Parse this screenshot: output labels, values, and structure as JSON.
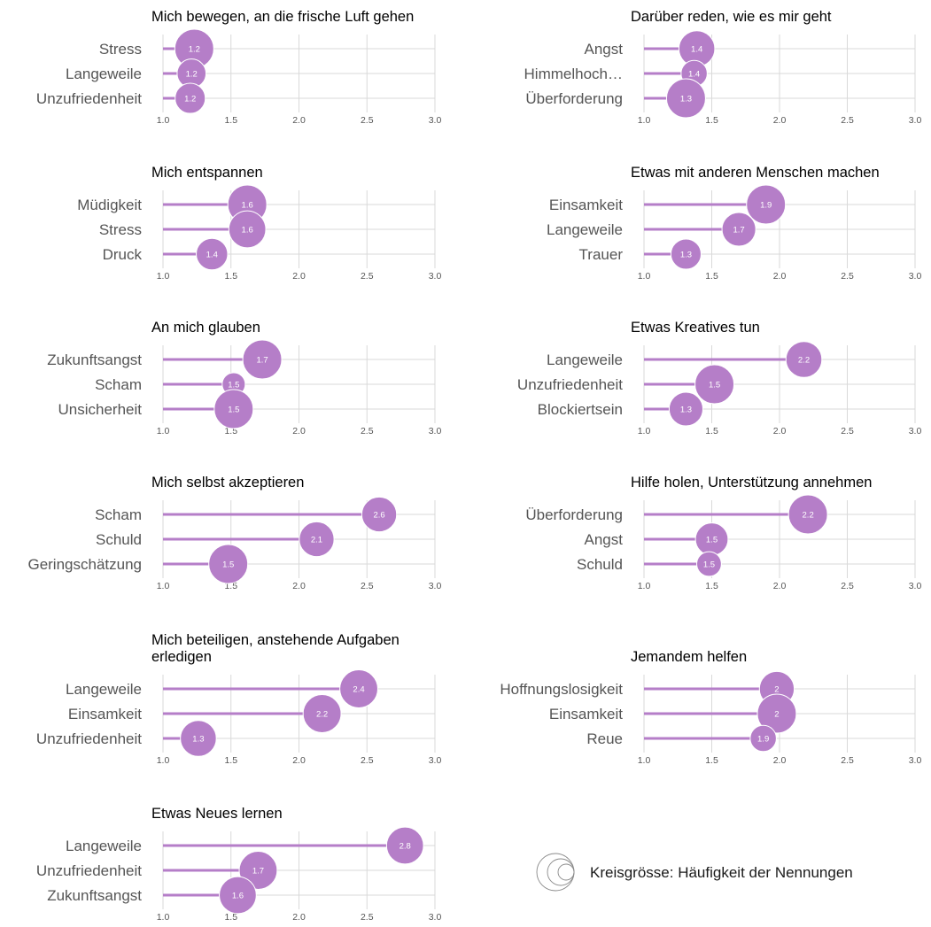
{
  "colors": {
    "accent": "#b57ec8",
    "grid": "#d9d9d9",
    "bubble_stroke": "#ffffff"
  },
  "chart_data": [
    {
      "type": "lollipop-bubble",
      "title": "Mich bewegen, an die frische Luft gehen",
      "categories": [
        "Stress",
        "Langeweile",
        "Unzufriedenheit"
      ],
      "values": [
        1.23,
        1.21,
        1.2
      ],
      "labels": [
        "1.2",
        "1.2",
        "1.2"
      ],
      "sizes": [
        1.0,
        0.55,
        0.6
      ],
      "xlim": [
        1.0,
        3.0
      ],
      "xticks": [
        "1.0",
        "1.5",
        "2.0",
        "2.5",
        "3.0"
      ]
    },
    {
      "type": "lollipop-bubble",
      "title": "Darüber reden, wie es mir geht",
      "categories": [
        "Angst",
        "Himmelhoch…",
        "Überforderung"
      ],
      "values": [
        1.39,
        1.37,
        1.31
      ],
      "labels": [
        "1.4",
        "1.4",
        "1.3"
      ],
      "sizes": [
        0.85,
        0.45,
        1.0
      ],
      "xlim": [
        1.0,
        3.0
      ],
      "xticks": [
        "1.0",
        "1.5",
        "2.0",
        "2.5",
        "3.0"
      ]
    },
    {
      "type": "lollipop-bubble",
      "title": "Mich entspannen",
      "categories": [
        "Müdigkeit",
        "Stress",
        "Druck"
      ],
      "values": [
        1.62,
        1.62,
        1.36
      ],
      "labels": [
        "1.6",
        "1.6",
        "1.4"
      ],
      "sizes": [
        1.0,
        0.9,
        0.65
      ],
      "xlim": [
        1.0,
        3.0
      ],
      "xticks": [
        "1.0",
        "1.5",
        "2.0",
        "2.5",
        "3.0"
      ]
    },
    {
      "type": "lollipop-bubble",
      "title": "Etwas mit anderen Menschen machen",
      "categories": [
        "Einsamkeit",
        "Langeweile",
        "Trauer"
      ],
      "values": [
        1.9,
        1.7,
        1.31
      ],
      "labels": [
        "1.9",
        "1.7",
        "1.3"
      ],
      "sizes": [
        1.0,
        0.75,
        0.6
      ],
      "xlim": [
        1.0,
        3.0
      ],
      "xticks": [
        "1.0",
        "1.5",
        "2.0",
        "2.5",
        "3.0"
      ]
    },
    {
      "type": "lollipop-bubble",
      "title": "An mich glauben",
      "categories": [
        "Zukunftsangst",
        "Scham",
        "Unsicherheit"
      ],
      "values": [
        1.73,
        1.52,
        1.52
      ],
      "labels": [
        "1.7",
        "1.5",
        "1.5"
      ],
      "sizes": [
        1.0,
        0.35,
        1.0
      ],
      "xlim": [
        1.0,
        3.0
      ],
      "xticks": [
        "1.0",
        "1.5",
        "2.0",
        "2.5",
        "3.0"
      ]
    },
    {
      "type": "lollipop-bubble",
      "title": "Etwas Kreatives tun",
      "categories": [
        "Langeweile",
        "Unzufriedenheit",
        "Blockiertsein"
      ],
      "values": [
        2.18,
        1.52,
        1.31
      ],
      "labels": [
        "2.2",
        "1.5",
        "1.3"
      ],
      "sizes": [
        0.85,
        1.0,
        0.75
      ],
      "xlim": [
        1.0,
        3.0
      ],
      "xticks": [
        "1.0",
        "1.5",
        "2.0",
        "2.5",
        "3.0"
      ]
    },
    {
      "type": "lollipop-bubble",
      "title": "Mich selbst akzeptieren",
      "categories": [
        "Scham",
        "Schuld",
        "Geringschätzung"
      ],
      "values": [
        2.59,
        2.13,
        1.48
      ],
      "labels": [
        "2.6",
        "2.1",
        "1.5"
      ],
      "sizes": [
        0.8,
        0.8,
        1.0
      ],
      "xlim": [
        1.0,
        3.0
      ],
      "xticks": [
        "1.0",
        "1.5",
        "2.0",
        "2.5",
        "3.0"
      ]
    },
    {
      "type": "lollipop-bubble",
      "title": "Hilfe holen, Unterstützung annehmen",
      "categories": [
        "Überforderung",
        "Angst",
        "Schuld"
      ],
      "values": [
        2.21,
        1.5,
        1.48
      ],
      "labels": [
        "2.2",
        "1.5",
        "1.5"
      ],
      "sizes": [
        1.0,
        0.7,
        0.4
      ],
      "xlim": [
        1.0,
        3.0
      ],
      "xticks": [
        "1.0",
        "1.5",
        "2.0",
        "2.5",
        "3.0"
      ]
    },
    {
      "type": "lollipop-bubble",
      "title": "Mich beteiligen, anstehende Aufgaben erledigen",
      "categories": [
        "Langeweile",
        "Einsamkeit",
        "Unzufriedenheit"
      ],
      "values": [
        2.44,
        2.17,
        1.26
      ],
      "labels": [
        "2.4",
        "2.2",
        "1.3"
      ],
      "sizes": [
        0.95,
        0.95,
        0.85
      ],
      "xlim": [
        1.0,
        3.0
      ],
      "xticks": [
        "1.0",
        "1.5",
        "2.0",
        "2.5",
        "3.0"
      ]
    },
    {
      "type": "lollipop-bubble",
      "title": "Jemandem helfen",
      "categories": [
        "Hoffnungslosigkeit",
        "Einsamkeit",
        "Reue"
      ],
      "values": [
        1.98,
        1.98,
        1.88
      ],
      "labels": [
        "2",
        "2",
        "1.9"
      ],
      "sizes": [
        0.8,
        1.0,
        0.45
      ],
      "xlim": [
        1.0,
        3.0
      ],
      "xticks": [
        "1.0",
        "1.5",
        "2.0",
        "2.5",
        "3.0"
      ]
    },
    {
      "type": "lollipop-bubble",
      "title": "Etwas Neues lernen",
      "categories": [
        "Langeweile",
        "Unzufriedenheit",
        "Zukunftsangst"
      ],
      "values": [
        2.78,
        1.7,
        1.55
      ],
      "labels": [
        "2.8",
        "1.7",
        "1.6"
      ],
      "sizes": [
        0.9,
        0.95,
        0.9
      ],
      "xlim": [
        1.0,
        3.0
      ],
      "xticks": [
        "1.0",
        "1.5",
        "2.0",
        "2.5",
        "3.0"
      ]
    }
  ],
  "legend": {
    "text": "Kreisgrösse: Häufigkeit der Nennungen",
    "icon": "nested-circles-icon"
  }
}
